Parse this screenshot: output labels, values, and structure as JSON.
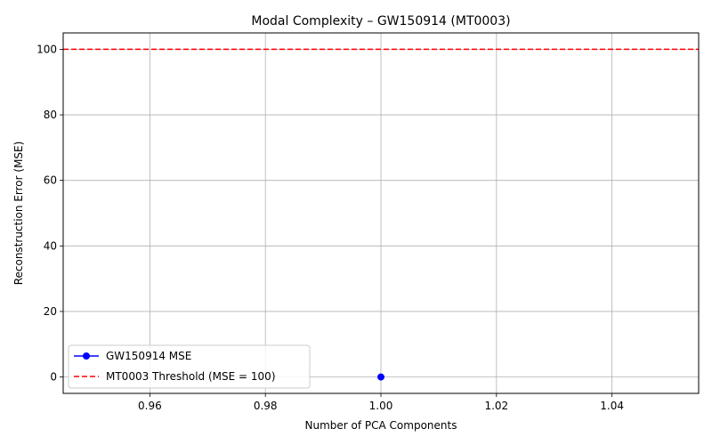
{
  "chart_data": {
    "type": "line",
    "title": "Modal Complexity – GW150914 (MT0003)",
    "xlabel": "Number of PCA Components",
    "ylabel": "Reconstruction Error (MSE)",
    "xlim": [
      0.945,
      1.055
    ],
    "ylim": [
      -5,
      105
    ],
    "x_ticks": [
      0.96,
      0.98,
      1.0,
      1.02,
      1.04
    ],
    "x_tick_labels": [
      "0.96",
      "0.98",
      "1.00",
      "1.02",
      "1.04"
    ],
    "y_ticks": [
      0,
      20,
      40,
      60,
      80,
      100
    ],
    "y_tick_labels": [
      "0",
      "20",
      "40",
      "60",
      "80",
      "100"
    ],
    "grid": true,
    "legend_position": "lower-left",
    "series": [
      {
        "name": "GW150914 MSE",
        "x": [
          1
        ],
        "y": [
          0
        ],
        "color": "#0000ff",
        "style": "solid",
        "marker": "circle"
      }
    ],
    "reference_lines": [
      {
        "name": "MT0003 Threshold (MSE = 100)",
        "y": 100,
        "color": "#ff0000",
        "style": "dashed"
      }
    ]
  }
}
